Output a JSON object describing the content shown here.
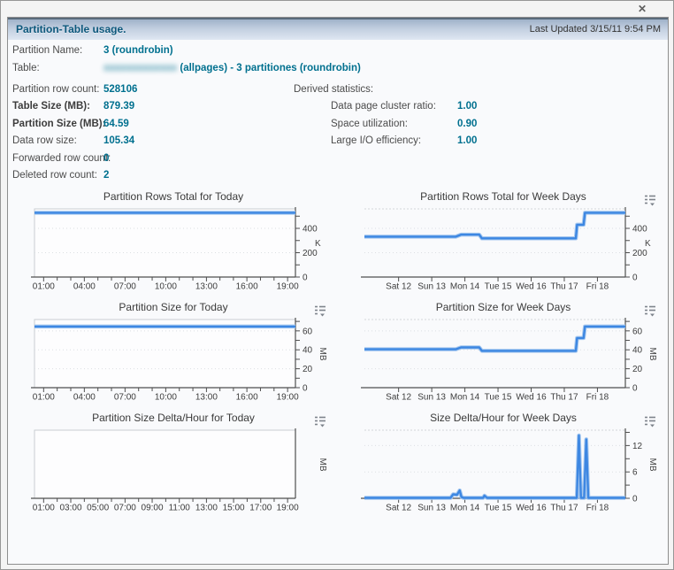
{
  "window": {
    "close_glyph": "✕"
  },
  "header": {
    "title": "Partition-Table usage.",
    "last_updated": "Last Updated 3/15/11 9:54 PM"
  },
  "info": {
    "partition_name": {
      "label": "Partition Name:",
      "value": "3 (roundrobin)"
    },
    "table": {
      "label": "Table:",
      "redacted_placeholder": "xxxxxxxxxxxxx",
      "value_suffix": "(allpages) - 3 partitiones (roundrobin)"
    },
    "partition_row_count": {
      "label": "Partition row count:",
      "value": "528106"
    },
    "table_size": {
      "label": "Table Size (MB):",
      "value": "879.39"
    },
    "partition_size": {
      "label": "Partition Size (MB):",
      "value": "64.59"
    },
    "data_row_size": {
      "label": "Data row size:",
      "value": "105.34"
    },
    "forwarded_row_count": {
      "label": "Forwarded row count:",
      "value": "0"
    },
    "deleted_row_count": {
      "label": "Deleted row count:",
      "value": "2"
    },
    "derived_statistics_label": "Derived statistics:",
    "data_page_cluster_ratio": {
      "label": "Data page cluster ratio:",
      "value": "1.00"
    },
    "space_utilization": {
      "label": "Space utilization:",
      "value": "0.90"
    },
    "large_io_efficiency": {
      "label": "Large I/O efficiency:",
      "value": "1.00"
    }
  },
  "colors": {
    "line": "#3d87e2",
    "line_halo": "#a6c8ef",
    "value_teal": "#00708f",
    "axis": "#4f4f4f",
    "grid": "#dcdfe3"
  },
  "chart_data": [
    {
      "id": "partition-rows-today",
      "type": "line",
      "title": "Partition Rows Total for Today",
      "unit": "K",
      "unit_rotated": false,
      "menu_icon": false,
      "boxed": true,
      "ylim": [
        0,
        560
      ],
      "yticks": [
        [
          0,
          "0"
        ],
        [
          200,
          "200"
        ],
        [
          400,
          "400"
        ]
      ],
      "yminor": [
        100,
        300,
        500
      ],
      "xticks": [
        [
          3.5,
          "01:00"
        ],
        [
          19.1,
          "04:00"
        ],
        [
          34.7,
          "07:00"
        ],
        [
          50.3,
          "10:00"
        ],
        [
          65.9,
          "13:00"
        ],
        [
          81.4,
          "16:00"
        ],
        [
          97,
          "19:00"
        ]
      ],
      "xminor_between": 2,
      "series": [
        {
          "name": "partition-rows-K",
          "points": [
            [
              0,
              528.1
            ],
            [
              100,
              528.1
            ]
          ]
        }
      ]
    },
    {
      "id": "partition-rows-week",
      "type": "line",
      "title": "Partition Rows Total for Week Days",
      "unit": "K",
      "unit_rotated": false,
      "menu_icon": true,
      "boxed": false,
      "ylim": [
        0,
        560
      ],
      "yticks": [
        [
          0,
          "0"
        ],
        [
          200,
          "200"
        ],
        [
          400,
          "400"
        ]
      ],
      "yminor": [
        100,
        300,
        500
      ],
      "xticks": [
        [
          13.1,
          "Sat 12"
        ],
        [
          25.8,
          "Sun 13"
        ],
        [
          38.5,
          "Mon 14"
        ],
        [
          51.2,
          "Tue 15"
        ],
        [
          63.9,
          "Wed 16"
        ],
        [
          76.6,
          "Thu 17"
        ],
        [
          89.3,
          "Fri 18"
        ]
      ],
      "xminor_between": 0,
      "series": [
        {
          "name": "partition-rows-K",
          "points": [
            [
              0,
              332
            ],
            [
              35,
              332
            ],
            [
              37,
              348
            ],
            [
              44,
              348
            ],
            [
              45,
              318
            ],
            [
              81,
              318
            ],
            [
              81.5,
              430
            ],
            [
              84,
              430
            ],
            [
              84.5,
              528.1
            ],
            [
              100,
              528.1
            ]
          ]
        }
      ]
    },
    {
      "id": "partition-size-today",
      "type": "line",
      "title": "Partition Size for Today",
      "unit": "MB",
      "unit_rotated": true,
      "menu_icon": true,
      "boxed": true,
      "ylim": [
        0,
        72
      ],
      "yticks": [
        [
          0,
          "0"
        ],
        [
          20,
          "20"
        ],
        [
          40,
          "40"
        ],
        [
          60,
          "60"
        ]
      ],
      "yminor": [
        10,
        30,
        50,
        70
      ],
      "xticks": [
        [
          3.5,
          "01:00"
        ],
        [
          19.1,
          "04:00"
        ],
        [
          34.7,
          "07:00"
        ],
        [
          50.3,
          "10:00"
        ],
        [
          65.9,
          "13:00"
        ],
        [
          81.4,
          "16:00"
        ],
        [
          97,
          "19:00"
        ]
      ],
      "xminor_between": 2,
      "series": [
        {
          "name": "partition-size-MB",
          "points": [
            [
              0,
              64.59
            ],
            [
              100,
              64.59
            ]
          ]
        }
      ]
    },
    {
      "id": "partition-size-week",
      "type": "line",
      "title": "Partition Size for Week Days",
      "unit": "MB",
      "unit_rotated": true,
      "menu_icon": true,
      "boxed": false,
      "ylim": [
        0,
        72
      ],
      "yticks": [
        [
          0,
          "0"
        ],
        [
          20,
          "20"
        ],
        [
          40,
          "40"
        ],
        [
          60,
          "60"
        ]
      ],
      "yminor": [
        10,
        30,
        50,
        70
      ],
      "xticks": [
        [
          13.1,
          "Sat 12"
        ],
        [
          25.8,
          "Sun 13"
        ],
        [
          38.5,
          "Mon 14"
        ],
        [
          51.2,
          "Tue 15"
        ],
        [
          63.9,
          "Wed 16"
        ],
        [
          76.6,
          "Thu 17"
        ],
        [
          89.3,
          "Fri 18"
        ]
      ],
      "xminor_between": 0,
      "series": [
        {
          "name": "partition-size-MB",
          "points": [
            [
              0,
              40.6
            ],
            [
              35,
              40.6
            ],
            [
              37,
              42.5
            ],
            [
              44,
              42.5
            ],
            [
              45,
              38.9
            ],
            [
              81,
              38.9
            ],
            [
              81.5,
              52.5
            ],
            [
              84,
              52.5
            ],
            [
              84.5,
              64.59
            ],
            [
              100,
              64.59
            ]
          ]
        }
      ]
    },
    {
      "id": "size-delta-today",
      "type": "line",
      "title": "Partition Size Delta/Hour for Today",
      "unit": "MB",
      "unit_rotated": true,
      "menu_icon": true,
      "boxed": true,
      "ylim": [
        0,
        1
      ],
      "yticks": [],
      "yminor": [],
      "xticks": [
        [
          3.5,
          "01:00"
        ],
        [
          13.9,
          "03:00"
        ],
        [
          24.3,
          "05:00"
        ],
        [
          34.7,
          "07:00"
        ],
        [
          45.1,
          "09:00"
        ],
        [
          55.5,
          "11:00"
        ],
        [
          65.9,
          "13:00"
        ],
        [
          76.3,
          "15:00"
        ],
        [
          86.7,
          "17:00"
        ],
        [
          97,
          "19:00"
        ]
      ],
      "xminor_between": 1,
      "series": []
    },
    {
      "id": "size-delta-week",
      "type": "line",
      "title": "Size Delta/Hour for Week Days",
      "unit": "MB",
      "unit_rotated": true,
      "menu_icon": true,
      "boxed": false,
      "ylim": [
        0,
        15.5
      ],
      "yticks": [
        [
          0,
          "0"
        ],
        [
          6,
          "6"
        ],
        [
          12,
          "12"
        ]
      ],
      "yminor": [
        3,
        9,
        15
      ],
      "xticks": [
        [
          13.1,
          "Sat 12"
        ],
        [
          25.8,
          "Sun 13"
        ],
        [
          38.5,
          "Mon 14"
        ],
        [
          51.2,
          "Tue 15"
        ],
        [
          63.9,
          "Wed 16"
        ],
        [
          76.6,
          "Thu 17"
        ],
        [
          89.3,
          "Fri 18"
        ]
      ],
      "xminor_between": 0,
      "series": [
        {
          "name": "size-delta-MB",
          "points": [
            [
              0,
              0.1
            ],
            [
              33,
              0.1
            ],
            [
              34,
              0.9
            ],
            [
              35.5,
              0.8
            ],
            [
              36.5,
              1.8
            ],
            [
              37.2,
              0.3
            ],
            [
              38,
              0.1
            ],
            [
              45.5,
              0.1
            ],
            [
              46,
              0.6
            ],
            [
              47,
              0.1
            ],
            [
              81.4,
              0.1
            ],
            [
              82.2,
              14.3
            ],
            [
              83,
              0.1
            ],
            [
              84.2,
              0.1
            ],
            [
              85,
              13.4
            ],
            [
              85.8,
              0.1
            ],
            [
              100,
              0.1
            ]
          ]
        }
      ]
    }
  ]
}
